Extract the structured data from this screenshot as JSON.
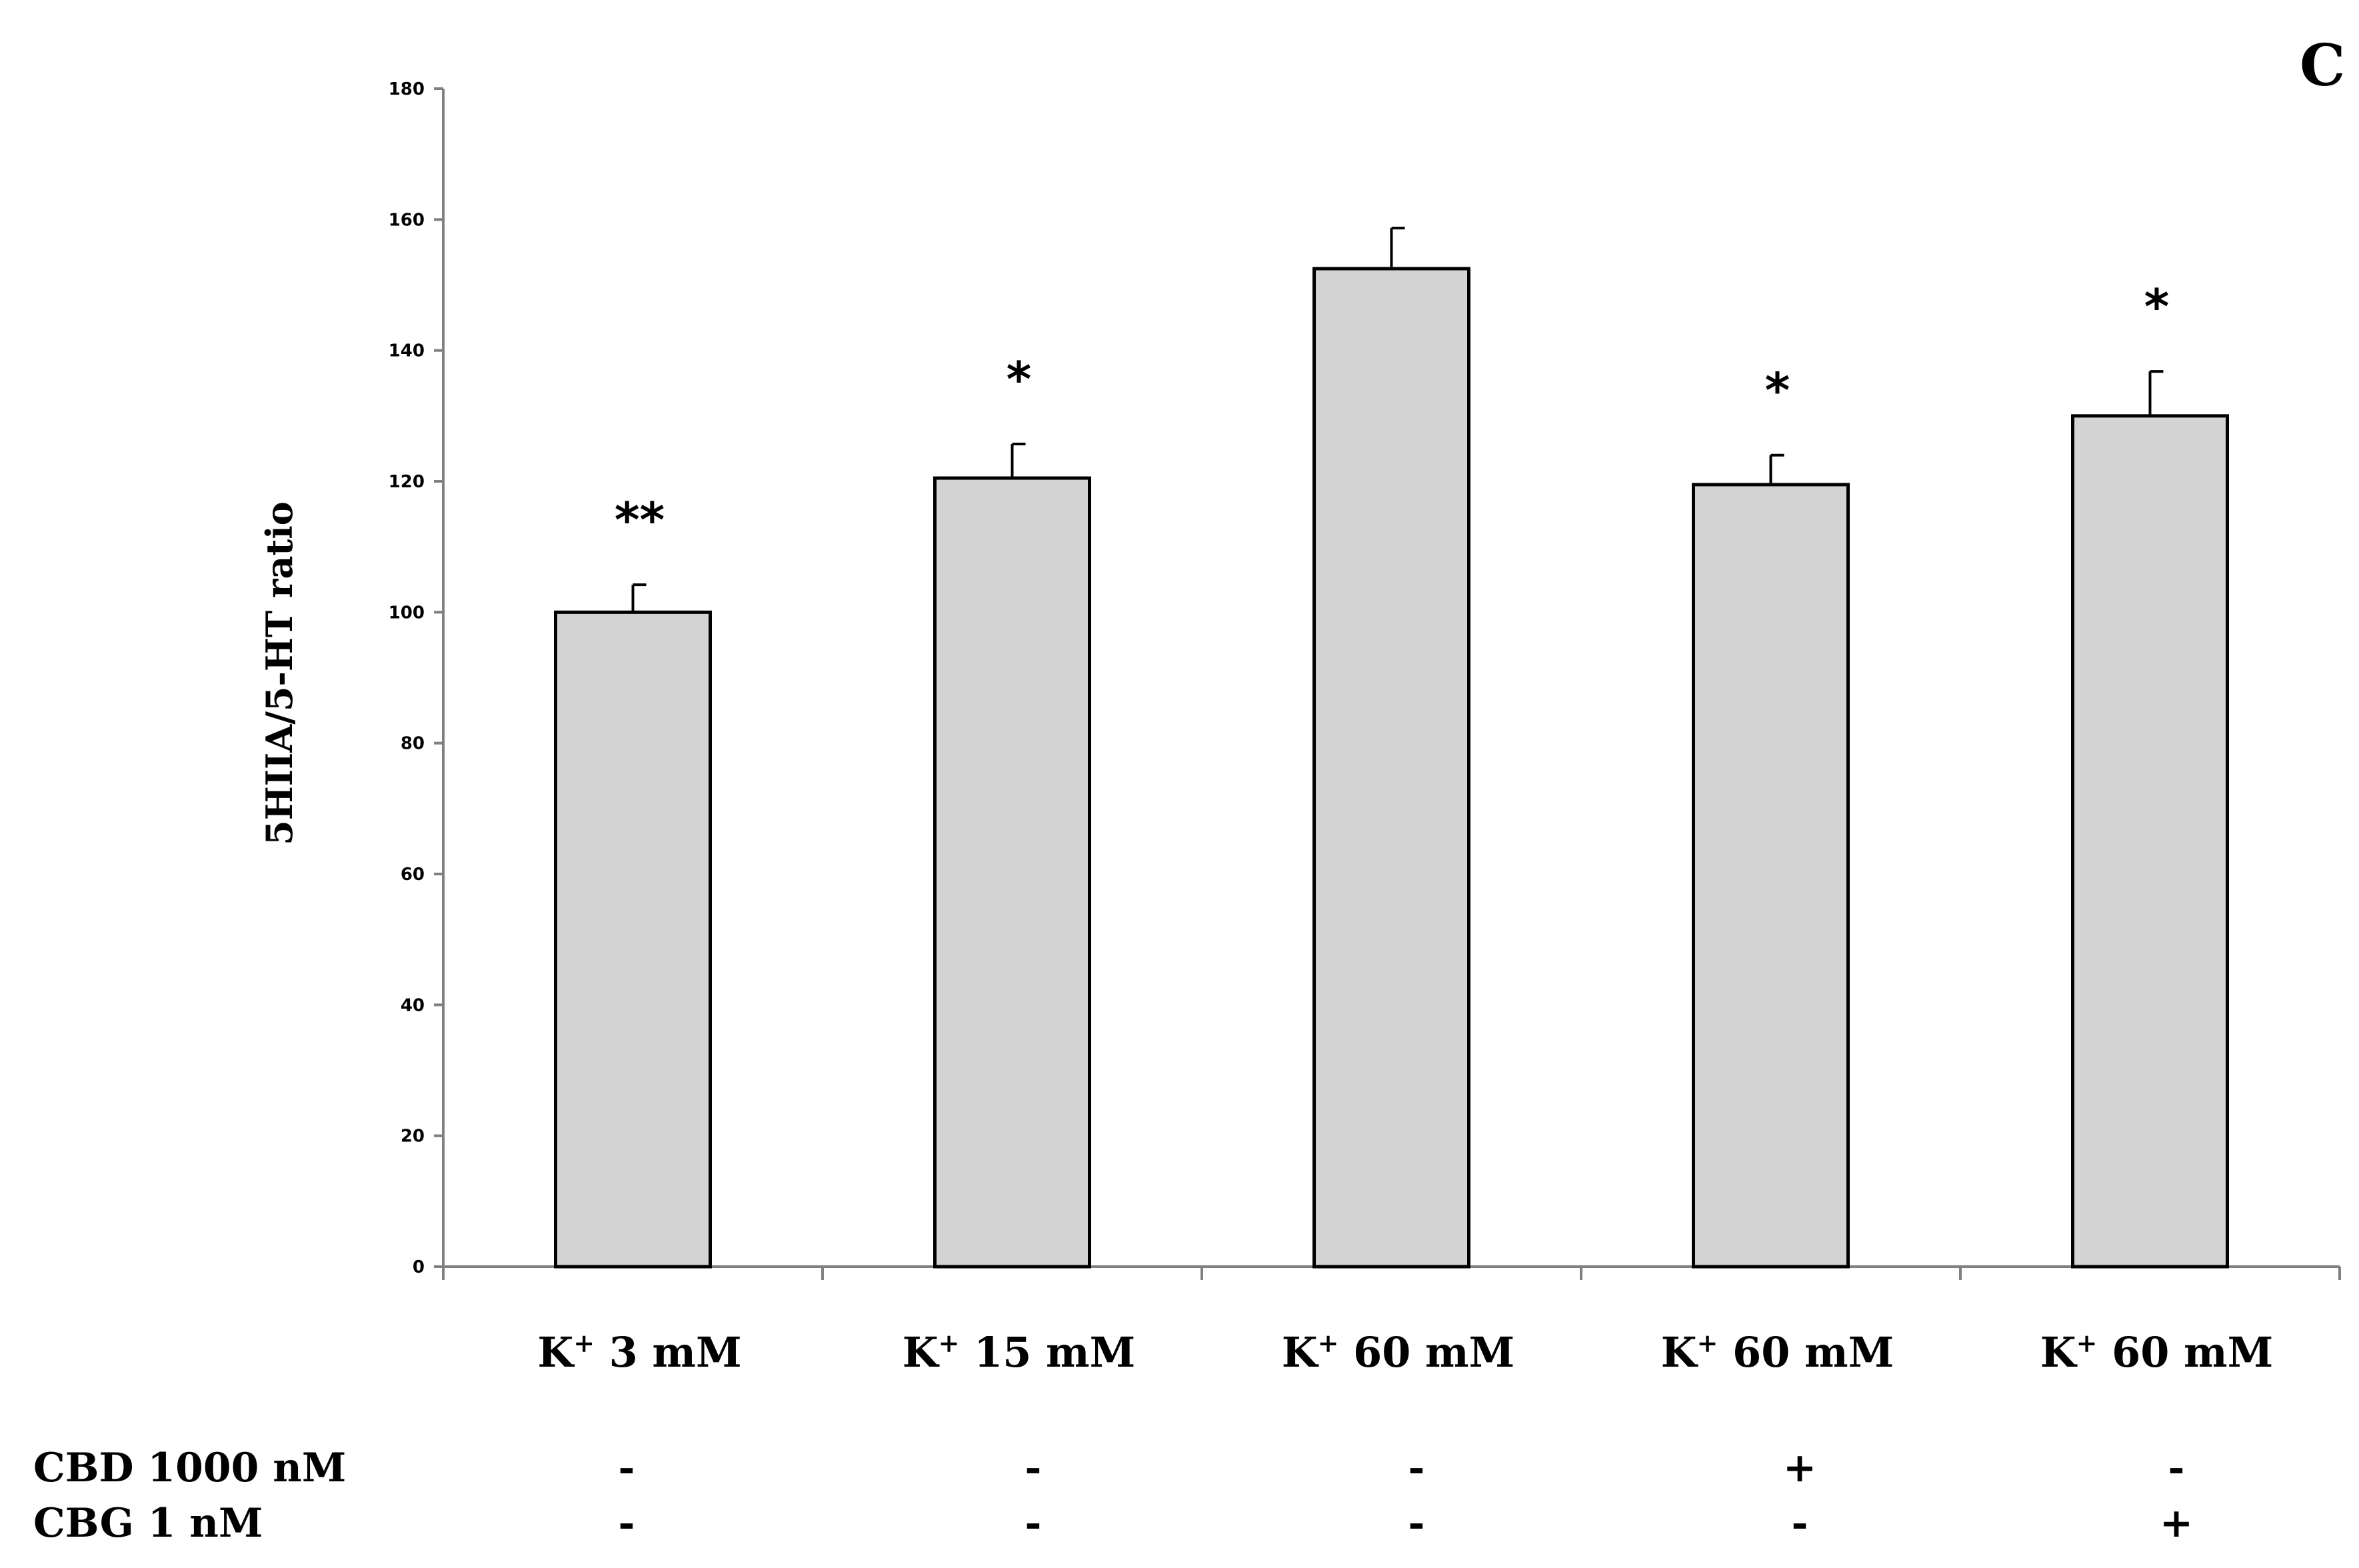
{
  "chart_data": {
    "type": "bar",
    "panel_label": "C",
    "ylabel": "5HIIA/5-HT ratio",
    "xlabel": "",
    "ylim": [
      0,
      180
    ],
    "yticks": [
      0,
      20,
      40,
      60,
      80,
      100,
      120,
      140,
      160,
      180
    ],
    "categories": [
      {
        "main": "K",
        "sup": "+",
        "rest": " 3 mM"
      },
      {
        "main": "K",
        "sup": "+",
        "rest": " 15 mM"
      },
      {
        "main": "K",
        "sup": "+",
        "rest": " 60 mM"
      },
      {
        "main": "K",
        "sup": "+",
        "rest": " 60 mM"
      },
      {
        "main": "K",
        "sup": "+",
        "rest": " 60 mM"
      }
    ],
    "values": [
      100,
      120.5,
      152.5,
      119.5,
      130
    ],
    "errors": [
      4.2,
      5.2,
      6.2,
      4.5,
      6.8
    ],
    "significance": [
      "**",
      "*",
      "",
      "*",
      "*"
    ],
    "treatment_rows": [
      {
        "label": "CBD 1000 nM",
        "marks": [
          "-",
          "-",
          "-",
          "+",
          "-"
        ]
      },
      {
        "label": "CBG 1 nM",
        "marks": [
          "-",
          "-",
          "-",
          "-",
          "+"
        ]
      }
    ],
    "colors": {
      "bar_fill": "#d3d3d3",
      "bar_stroke": "#000000",
      "axis": "#808080"
    },
    "grid": false
  }
}
